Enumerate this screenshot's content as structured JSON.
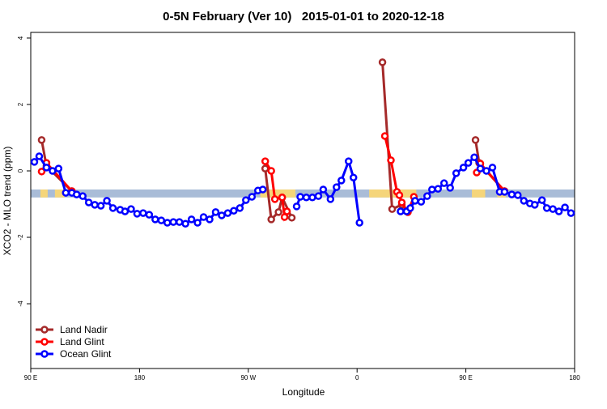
{
  "chart_data": {
    "type": "line",
    "title": "0-5N February (Ver 10)   2015-01-01 to 2020-12-18",
    "x_label": "Longitude",
    "y_label": "XCO2 - MLO trend (ppm)",
    "xlim": [
      90,
      540
    ],
    "xticks": [
      {
        "value": 90,
        "label": "90 E"
      },
      180,
      {
        "value": 270,
        "label": "90 W"
      },
      {
        "value": 360,
        "label": "0"
      },
      {
        "value": 450,
        "label": "90 E"
      },
      {
        "value": 540,
        "label": "180"
      }
    ],
    "ylim": [
      -5.95,
      4.17
    ],
    "yticks": [
      -4,
      -2,
      0,
      2,
      4
    ],
    "legend": "bottom-left",
    "band": {
      "range": [
        -0.8,
        -0.56
      ],
      "color": "#a9bcd7",
      "land_color": "#f5d57a",
      "land": [
        [
          98,
          104
        ],
        [
          110,
          118
        ],
        [
          280,
          309
        ],
        [
          370,
          409
        ],
        [
          455,
          466
        ],
        [
          476,
          483
        ]
      ]
    },
    "series": [
      {
        "name": "Land Nadir",
        "color": "#a52a2a",
        "x": [
          99,
          103,
          124,
          null,
          284,
          289,
          295,
          298,
          306,
          null,
          381,
          389,
          397,
          402,
          null,
          458,
          461,
          482
        ],
        "values": [
          0.93,
          0.15,
          -0.61,
          null,
          0.07,
          -1.46,
          -1.24,
          -0.8,
          -1.41,
          null,
          3.27,
          -1.15,
          -1.02,
          -1.24,
          null,
          0.93,
          0.24,
          -0.61
        ]
      },
      {
        "name": "Land Glint",
        "color": "#ff0000",
        "x": [
          99,
          103,
          124,
          null,
          284,
          289,
          292,
          298,
          300,
          302,
          null,
          383,
          388,
          393,
          395,
          397,
          402,
          407,
          null,
          459,
          462,
          482
        ],
        "values": [
          -0.02,
          0.24,
          -0.61,
          null,
          0.29,
          0.0,
          -0.85,
          -0.8,
          -1.39,
          -1.22,
          null,
          1.05,
          0.32,
          -0.63,
          -0.73,
          -0.95,
          -1.24,
          -0.78,
          null,
          -0.05,
          0.22,
          -0.61
        ]
      },
      {
        "name": "Ocean Glint",
        "color": "#0000ff",
        "x": [
          93,
          97,
          103,
          108,
          113,
          119,
          124,
          128,
          133,
          138,
          143,
          148,
          153,
          158,
          164,
          168,
          173,
          178,
          183,
          188,
          193,
          198,
          203,
          208,
          213,
          218,
          223,
          228,
          233,
          238,
          243,
          248,
          253,
          258,
          263,
          268,
          273,
          278,
          282,
          null,
          310,
          313,
          318,
          323,
          328,
          332,
          338,
          343,
          347,
          353,
          357,
          362,
          null,
          396,
          401,
          404,
          408,
          413,
          418,
          422,
          427,
          432,
          437,
          442,
          448,
          452,
          457,
          462,
          467,
          472,
          478,
          482,
          488,
          493,
          498,
          503,
          507,
          513,
          517,
          522,
          527,
          532,
          537
        ],
        "values": [
          0.27,
          0.44,
          0.1,
          0.0,
          0.07,
          -0.66,
          -0.66,
          -0.71,
          -0.76,
          -0.95,
          -1.02,
          -1.05,
          -0.9,
          -1.12,
          -1.17,
          -1.22,
          -1.15,
          -1.29,
          -1.27,
          -1.32,
          -1.46,
          -1.49,
          -1.56,
          -1.54,
          -1.54,
          -1.59,
          -1.46,
          -1.56,
          -1.39,
          -1.46,
          -1.24,
          -1.34,
          -1.27,
          -1.2,
          -1.12,
          -0.88,
          -0.78,
          -0.59,
          -0.56,
          null,
          -1.07,
          -0.78,
          -0.8,
          -0.8,
          -0.76,
          -0.56,
          -0.85,
          -0.49,
          -0.29,
          0.29,
          -0.2,
          -1.56,
          null,
          -1.22,
          -1.22,
          -1.12,
          -0.9,
          -0.93,
          -0.76,
          -0.56,
          -0.54,
          -0.37,
          -0.51,
          -0.07,
          0.1,
          0.24,
          0.41,
          0.07,
          0.0,
          0.1,
          -0.63,
          -0.63,
          -0.71,
          -0.73,
          -0.9,
          -0.98,
          -1.02,
          -0.88,
          -1.12,
          -1.15,
          -1.22,
          -1.1,
          -1.27
        ]
      }
    ]
  }
}
